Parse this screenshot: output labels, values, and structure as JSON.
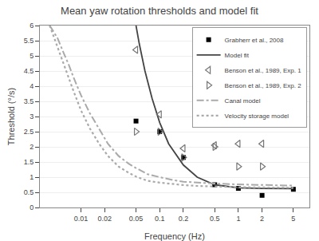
{
  "chart_data": {
    "type": "line",
    "title": "Mean yaw rotation thresholds and model fit",
    "xlabel": "Frequency (Hz)",
    "ylabel": "Threshold (°/s)",
    "log": "x",
    "xlim": [
      0.003,
      8.0
    ],
    "ylim": [
      0,
      6
    ],
    "xticks": [
      0.01,
      0.02,
      0.05,
      0.1,
      0.2,
      0.5,
      1,
      2,
      5
    ],
    "yticks": [
      0,
      0.5,
      1,
      1.5,
      2,
      2.5,
      3,
      3.5,
      4,
      4.5,
      5,
      5.5,
      6
    ],
    "grid": "y",
    "legend": "upper right",
    "series": [
      {
        "name": "Grabherr et al., 2008",
        "type": "scatter",
        "marker": "square",
        "color": "#000000",
        "x": [
          0.05,
          0.1,
          0.2,
          0.5,
          1.0,
          2.0,
          5.0
        ],
        "values": [
          2.85,
          2.5,
          1.65,
          0.75,
          0.63,
          0.4,
          0.6
        ]
      },
      {
        "name": "Model fit",
        "type": "line",
        "line_style": "solid",
        "color": "#444444",
        "x": [
          0.05,
          0.055,
          0.065,
          0.08,
          0.1,
          0.13,
          0.2,
          0.3,
          0.5,
          1.0,
          2.0,
          5.0
        ],
        "values": [
          6.0,
          5.4,
          4.5,
          3.6,
          2.8,
          2.1,
          1.4,
          1.0,
          0.75,
          0.65,
          0.63,
          0.62
        ]
      },
      {
        "name": "Benson et al., 1989, Exp. 1",
        "type": "scatter",
        "marker": "triangle-left-open",
        "color": "#777777",
        "x": [
          0.05,
          0.1,
          0.2,
          0.5,
          1.0,
          2.0
        ],
        "values": [
          5.2,
          3.07,
          1.95,
          2.05,
          2.1,
          2.1
        ]
      },
      {
        "name": "Benson et al., 1989, Exp. 2",
        "type": "scatter",
        "marker": "triangle-right-open",
        "color": "#777777",
        "x": [
          0.05,
          0.1,
          0.2,
          0.5,
          1.0,
          2.0
        ],
        "values": [
          2.5,
          2.5,
          1.65,
          2.0,
          1.35,
          1.35
        ]
      },
      {
        "name": "Canal model",
        "type": "line",
        "line_style": "dashdot",
        "color": "#aaaaaa",
        "x": [
          0.004,
          0.005,
          0.006,
          0.007,
          0.008,
          0.01,
          0.013,
          0.017,
          0.022,
          0.03,
          0.04,
          0.05,
          0.07,
          0.1,
          0.15,
          0.2,
          0.3,
          0.5,
          1.0,
          2.0,
          5.0
        ],
        "values": [
          6.0,
          5.6,
          5.1,
          4.7,
          4.3,
          3.7,
          3.1,
          2.6,
          2.1,
          1.7,
          1.45,
          1.3,
          1.1,
          1.0,
          0.9,
          0.85,
          0.82,
          0.79,
          0.76,
          0.74,
          0.72
        ]
      },
      {
        "name": "Velocity storage model",
        "type": "line",
        "line_style": "dotted",
        "color": "#aaaaaa",
        "x": [
          0.004,
          0.005,
          0.006,
          0.007,
          0.008,
          0.01,
          0.013,
          0.017,
          0.022,
          0.03,
          0.04,
          0.05,
          0.07,
          0.1,
          0.15,
          0.2,
          0.3,
          0.5,
          1.0,
          2.0,
          5.0
        ],
        "values": [
          6.0,
          5.3,
          4.75,
          4.25,
          3.85,
          3.2,
          2.6,
          2.1,
          1.7,
          1.35,
          1.15,
          1.02,
          0.88,
          0.82,
          0.77,
          0.74,
          0.71,
          0.69,
          0.67,
          0.66,
          0.65
        ]
      }
    ]
  }
}
